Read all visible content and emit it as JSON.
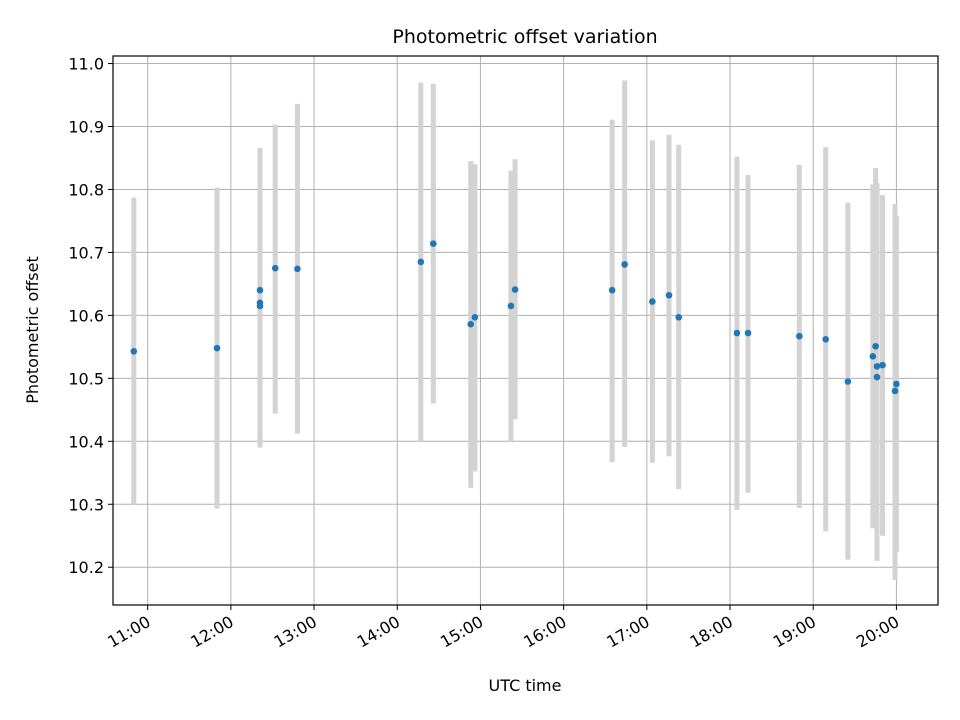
{
  "chart_data": {
    "type": "scatter",
    "title": "Photometric offset variation",
    "xlabel": "UTC time",
    "ylabel": "Photometric offset",
    "xlim": [
      "10:35",
      "20:30"
    ],
    "ylim": [
      10.14,
      11.012
    ],
    "x_ticks": [
      "11:00",
      "12:00",
      "13:00",
      "14:00",
      "15:00",
      "16:00",
      "17:00",
      "18:00",
      "19:00",
      "20:00"
    ],
    "y_ticks": [
      10.2,
      10.3,
      10.4,
      10.5,
      10.6,
      10.7,
      10.8,
      10.9,
      11.0
    ],
    "grid": true,
    "point_color": "#1f77b4",
    "errorbar_color": "#d3d3d3",
    "points": [
      {
        "t": "10:50",
        "y": 10.543,
        "lo": 10.3,
        "hi": 10.787
      },
      {
        "t": "11:50",
        "y": 10.548,
        "lo": 10.293,
        "hi": 10.803
      },
      {
        "t": "12:21",
        "y": 10.64,
        "lo": 10.39,
        "hi": 10.866
      },
      {
        "t": "12:21",
        "y": 10.62,
        "lo": 10.41,
        "hi": 10.866
      },
      {
        "t": "12:21",
        "y": 10.615,
        "lo": 10.4,
        "hi": 10.8
      },
      {
        "t": "12:32",
        "y": 10.675,
        "lo": 10.444,
        "hi": 10.903
      },
      {
        "t": "12:48",
        "y": 10.674,
        "lo": 10.412,
        "hi": 10.936
      },
      {
        "t": "14:17",
        "y": 10.685,
        "lo": 10.4,
        "hi": 10.97
      },
      {
        "t": "14:26",
        "y": 10.714,
        "lo": 10.46,
        "hi": 10.968
      },
      {
        "t": "14:53",
        "y": 10.586,
        "lo": 10.326,
        "hi": 10.845
      },
      {
        "t": "14:56",
        "y": 10.597,
        "lo": 10.352,
        "hi": 10.84
      },
      {
        "t": "15:22",
        "y": 10.615,
        "lo": 10.4,
        "hi": 10.83
      },
      {
        "t": "15:25",
        "y": 10.641,
        "lo": 10.435,
        "hi": 10.848
      },
      {
        "t": "16:35",
        "y": 10.64,
        "lo": 10.367,
        "hi": 10.911
      },
      {
        "t": "16:44",
        "y": 10.681,
        "lo": 10.391,
        "hi": 10.973
      },
      {
        "t": "17:04",
        "y": 10.622,
        "lo": 10.366,
        "hi": 10.878
      },
      {
        "t": "17:16",
        "y": 10.632,
        "lo": 10.376,
        "hi": 10.887
      },
      {
        "t": "17:23",
        "y": 10.597,
        "lo": 10.324,
        "hi": 10.871
      },
      {
        "t": "18:05",
        "y": 10.572,
        "lo": 10.291,
        "hi": 10.852
      },
      {
        "t": "18:13",
        "y": 10.572,
        "lo": 10.318,
        "hi": 10.823
      },
      {
        "t": "18:50",
        "y": 10.567,
        "lo": 10.294,
        "hi": 10.839
      },
      {
        "t": "19:09",
        "y": 10.562,
        "lo": 10.257,
        "hi": 10.867
      },
      {
        "t": "19:25",
        "y": 10.495,
        "lo": 10.212,
        "hi": 10.779
      },
      {
        "t": "19:43",
        "y": 10.535,
        "lo": 10.262,
        "hi": 10.808
      },
      {
        "t": "19:45",
        "y": 10.551,
        "lo": 10.268,
        "hi": 10.834
      },
      {
        "t": "19:46",
        "y": 10.519,
        "lo": 10.21,
        "hi": 10.81
      },
      {
        "t": "19:46",
        "y": 10.502,
        "lo": 10.26,
        "hi": 10.79
      },
      {
        "t": "19:50",
        "y": 10.521,
        "lo": 10.25,
        "hi": 10.791
      },
      {
        "t": "19:59",
        "y": 10.48,
        "lo": 10.18,
        "hi": 10.777
      },
      {
        "t": "20:00",
        "y": 10.491,
        "lo": 10.225,
        "hi": 10.757
      }
    ]
  }
}
